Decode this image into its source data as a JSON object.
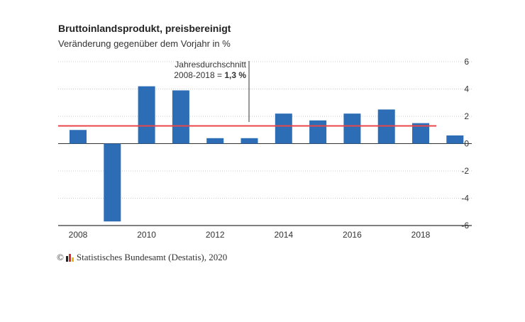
{
  "chart_data": {
    "type": "bar",
    "title": "Bruttoinlandsprodukt, preisbereinigt",
    "subtitle": "Veränderung gegenüber dem Vorjahr in %",
    "categories": [
      "2008",
      "2009",
      "2010",
      "2011",
      "2012",
      "2013",
      "2014",
      "2015",
      "2016",
      "2017",
      "2018",
      "2019"
    ],
    "values": [
      1.0,
      -5.7,
      4.2,
      3.9,
      0.4,
      0.4,
      2.2,
      1.7,
      2.2,
      2.5,
      1.5,
      0.6
    ],
    "x_tick_labels": [
      "2008",
      "2010",
      "2012",
      "2014",
      "2016",
      "2018"
    ],
    "y_ticks": [
      6,
      4,
      2,
      0,
      -2,
      -4,
      -6
    ],
    "ylim": [
      -6,
      6
    ],
    "y_axis_position": "right",
    "grid": true,
    "bar_color": "#2c6db5",
    "reference_line": {
      "value": 1.3,
      "color": "#e8464a",
      "label_line1": "Jahresdurchschnitt",
      "label_line2_prefix": "2008-2018 = ",
      "label_line2_value": "1,3 %"
    }
  },
  "source": "Statistisches Bundesamt (Destatis), 2020",
  "copyright_symbol": "©"
}
